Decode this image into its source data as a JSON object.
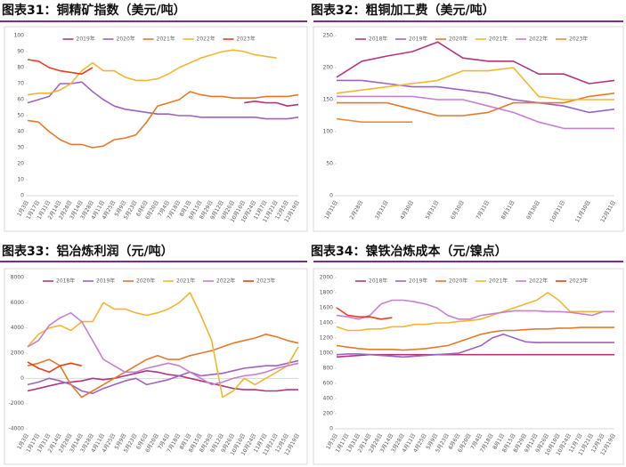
{
  "chart_data": [
    {
      "type": "line",
      "title": "图表31：铜精矿指数（美元/吨）",
      "categories": [
        "1月3日",
        "1月17日",
        "1月31日",
        "2月14日",
        "2月28日",
        "3月14日",
        "3月28日",
        "4月11日",
        "4月25日",
        "5月9日",
        "5月23日",
        "6月6日",
        "6月20日",
        "7月4日",
        "7月18日",
        "8月1日",
        "8月15日",
        "8月29日",
        "9月12日",
        "9月26日",
        "10月10日",
        "10月24日",
        "11月7日",
        "11月21日",
        "12月5日",
        "12月19日"
      ],
      "ylim": [
        0,
        100
      ],
      "yticks": [
        0,
        10,
        20,
        30,
        40,
        50,
        60,
        70,
        80,
        90,
        100
      ],
      "series": [
        {
          "name": "2019年",
          "color": "#b2357f",
          "values": [
            null,
            null,
            null,
            null,
            null,
            null,
            null,
            null,
            null,
            null,
            null,
            null,
            null,
            null,
            null,
            null,
            null,
            null,
            null,
            null,
            58,
            59,
            58,
            58,
            56,
            57
          ]
        },
        {
          "name": "2020年",
          "color": "#9e62c0",
          "values": [
            58,
            60,
            62,
            70,
            70,
            71,
            65,
            60,
            56,
            54,
            53,
            52,
            51,
            51,
            50,
            50,
            49,
            49,
            49,
            49,
            49,
            49,
            48,
            48,
            48,
            49
          ]
        },
        {
          "name": "2021年",
          "color": "#e6792e",
          "values": [
            47,
            46,
            40,
            35,
            32,
            32,
            30,
            31,
            35,
            36,
            38,
            46,
            56,
            58,
            60,
            65,
            63,
            62,
            62,
            61,
            61,
            61,
            62,
            62,
            62,
            63
          ]
        },
        {
          "name": "2022年",
          "color": "#f5b530",
          "values": [
            63,
            64,
            64,
            66,
            70,
            78,
            83,
            78,
            78,
            74,
            72,
            72,
            73,
            76,
            80,
            83,
            86,
            88,
            90,
            91,
            90,
            88,
            87,
            86,
            null,
            null
          ]
        },
        {
          "name": "2023年",
          "color": "#e8401c",
          "values": [
            85,
            84,
            80,
            78,
            77,
            76,
            80,
            null,
            null,
            null,
            null,
            null,
            null,
            null,
            null,
            null,
            null,
            null,
            null,
            null,
            null,
            null,
            null,
            null,
            null,
            null
          ]
        }
      ]
    },
    {
      "type": "line",
      "title": "图表32：粗铜加工费（美元/吨）",
      "categories": [
        "1月31日",
        "2月28日",
        "3月31日",
        "4月30日",
        "5月31日",
        "6月30日",
        "7月31日",
        "8月31日",
        "9月30日",
        "10月31日",
        "11月30日",
        "12月31日"
      ],
      "ylim": [
        0,
        250
      ],
      "yticks": [
        0,
        50,
        100,
        150,
        200,
        250
      ],
      "series": [
        {
          "name": "2018年",
          "color": "#b2357f",
          "values": [
            185,
            210,
            218,
            225,
            240,
            215,
            210,
            210,
            190,
            190,
            175,
            180
          ]
        },
        {
          "name": "2019年",
          "color": "#9e62c0",
          "values": [
            180,
            180,
            175,
            170,
            170,
            165,
            160,
            150,
            145,
            140,
            130,
            135
          ]
        },
        {
          "name": "2020年",
          "color": "#e6792e",
          "values": [
            145,
            145,
            145,
            135,
            125,
            125,
            130,
            145,
            145,
            145,
            155,
            160
          ]
        },
        {
          "name": "2021年",
          "color": "#f5b530",
          "values": [
            160,
            165,
            170,
            175,
            180,
            195,
            195,
            200,
            155,
            150,
            150,
            150
          ]
        },
        {
          "name": "2022年",
          "color": "#c77fd0",
          "values": [
            155,
            155,
            155,
            155,
            150,
            150,
            140,
            130,
            115,
            105,
            105,
            105
          ]
        },
        {
          "name": "2023年",
          "color": "#f08a40",
          "values": [
            120,
            115,
            115,
            115,
            null,
            null,
            null,
            null,
            null,
            null,
            null,
            null
          ]
        }
      ]
    },
    {
      "type": "line",
      "title": "图表33：铝冶炼利润（元/吨）",
      "categories": [
        "1月3日",
        "1月17日",
        "1月31日",
        "2月14日",
        "2月28日",
        "3月14日",
        "3月28日",
        "4月11日",
        "4月25日",
        "5月9日",
        "5月23日",
        "6月6日",
        "6月20日",
        "7月4日",
        "7月18日",
        "8月1日",
        "8月15日",
        "8月29日",
        "9月12日",
        "9月26日",
        "10月10日",
        "10月24日",
        "11月7日",
        "11月21日",
        "12月5日",
        "12月19日"
      ],
      "ylim": [
        -4000,
        8000
      ],
      "yticks": [
        -4000,
        -2000,
        0,
        2000,
        4000,
        6000,
        8000
      ],
      "series": [
        {
          "name": "2018年",
          "color": "#b2357f",
          "values": [
            -1000,
            -800,
            -600,
            -400,
            -300,
            -200,
            0,
            -100,
            0,
            200,
            400,
            600,
            500,
            300,
            200,
            0,
            -200,
            -400,
            -600,
            -800,
            -900,
            -900,
            -1000,
            -1000,
            -900,
            -900
          ]
        },
        {
          "name": "2019年",
          "color": "#9e62c0",
          "values": [
            -500,
            -300,
            0,
            -200,
            -500,
            -1000,
            -1200,
            -800,
            -500,
            -200,
            0,
            -500,
            -300,
            -100,
            200,
            500,
            200,
            300,
            400,
            600,
            800,
            900,
            1000,
            1000,
            1200,
            1400
          ]
        },
        {
          "name": "2020年",
          "color": "#e6792e",
          "values": [
            1000,
            1200,
            1500,
            1000,
            -500,
            -1500,
            -1000,
            -500,
            0,
            500,
            1000,
            1500,
            1800,
            1500,
            1500,
            1800,
            2000,
            2200,
            2500,
            2800,
            3000,
            3200,
            3500,
            3300,
            3000,
            2800
          ]
        },
        {
          "name": "2021年",
          "color": "#f5b530",
          "values": [
            2500,
            3500,
            4000,
            4200,
            3800,
            4500,
            4500,
            6000,
            5500,
            5500,
            5200,
            5000,
            5200,
            5500,
            6000,
            6800,
            5000,
            3000,
            -1500,
            -1000,
            0,
            -500,
            0,
            500,
            1000,
            2500
          ]
        },
        {
          "name": "2022年",
          "color": "#c77fd0",
          "values": [
            2500,
            3000,
            4200,
            4800,
            5200,
            4500,
            3000,
            1500,
            1000,
            500,
            500,
            800,
            1000,
            1200,
            1000,
            500,
            0,
            -500,
            -300,
            0,
            200,
            300,
            500,
            800,
            1000,
            1200
          ]
        },
        {
          "name": "2023年",
          "color": "#e8401c",
          "values": [
            1300,
            800,
            500,
            1000,
            1200,
            1000,
            null,
            null,
            null,
            null,
            null,
            null,
            null,
            null,
            null,
            null,
            null,
            null,
            null,
            null,
            null,
            null,
            null,
            null,
            null,
            null
          ]
        }
      ]
    },
    {
      "type": "line",
      "title": "图表34：镍铁冶炼成本（元/镍点）",
      "categories": [
        "1月3日",
        "1月17日",
        "1月31日",
        "2月14日",
        "2月28日",
        "3月14日",
        "3月28日",
        "4月11日",
        "4月25日",
        "5月9日",
        "5月23日",
        "6月6日",
        "6月20日",
        "7月4日",
        "7月18日",
        "8月1日",
        "8月15日",
        "8月29日",
        "9月12日",
        "9月26日",
        "10月10日",
        "10月24日",
        "11月7日",
        "11月21日",
        "12月5日",
        "12月19日"
      ],
      "ylim": [
        0,
        2000
      ],
      "yticks": [
        0,
        200,
        400,
        600,
        800,
        1000,
        1200,
        1400,
        1600,
        1800,
        2000
      ],
      "series": [
        {
          "name": "2018年",
          "color": "#b2357f",
          "values": [
            950,
            960,
            970,
            980,
            980,
            980,
            980,
            980,
            980,
            980,
            980,
            980,
            980,
            980,
            980,
            980,
            980,
            980,
            980,
            980,
            980,
            980,
            980,
            980,
            980,
            980
          ]
        },
        {
          "name": "2019年",
          "color": "#9e62c0",
          "values": [
            980,
            990,
            990,
            980,
            970,
            960,
            950,
            960,
            970,
            980,
            990,
            1000,
            1050,
            1100,
            1200,
            1250,
            1200,
            1150,
            1140,
            1140,
            1140,
            1140,
            1140,
            1140,
            1140,
            1140
          ]
        },
        {
          "name": "2020年",
          "color": "#e6792e",
          "values": [
            1100,
            1080,
            1060,
            1050,
            1050,
            1050,
            1040,
            1050,
            1060,
            1080,
            1100,
            1150,
            1200,
            1250,
            1280,
            1300,
            1300,
            1310,
            1320,
            1320,
            1330,
            1330,
            1340,
            1340,
            1340,
            1340
          ]
        },
        {
          "name": "2021年",
          "color": "#f5b530",
          "values": [
            1350,
            1300,
            1300,
            1320,
            1320,
            1350,
            1350,
            1380,
            1380,
            1400,
            1400,
            1420,
            1430,
            1450,
            1500,
            1550,
            1600,
            1650,
            1700,
            1800,
            1700,
            1550,
            1550,
            1550,
            1550,
            1550
          ]
        },
        {
          "name": "2022年",
          "color": "#c77fd0",
          "values": [
            1500,
            1480,
            1450,
            1500,
            1650,
            1700,
            1700,
            1680,
            1650,
            1600,
            1500,
            1450,
            1450,
            1500,
            1520,
            1540,
            1560,
            1560,
            1560,
            1550,
            1550,
            1540,
            1520,
            1500,
            1550,
            1550
          ]
        },
        {
          "name": "2023年",
          "color": "#e8401c",
          "values": [
            1600,
            1500,
            1480,
            1480,
            1450,
            1470,
            null,
            null,
            null,
            null,
            null,
            null,
            null,
            null,
            null,
            null,
            null,
            null,
            null,
            null,
            null,
            null,
            null,
            null,
            null,
            null
          ]
        }
      ]
    }
  ]
}
